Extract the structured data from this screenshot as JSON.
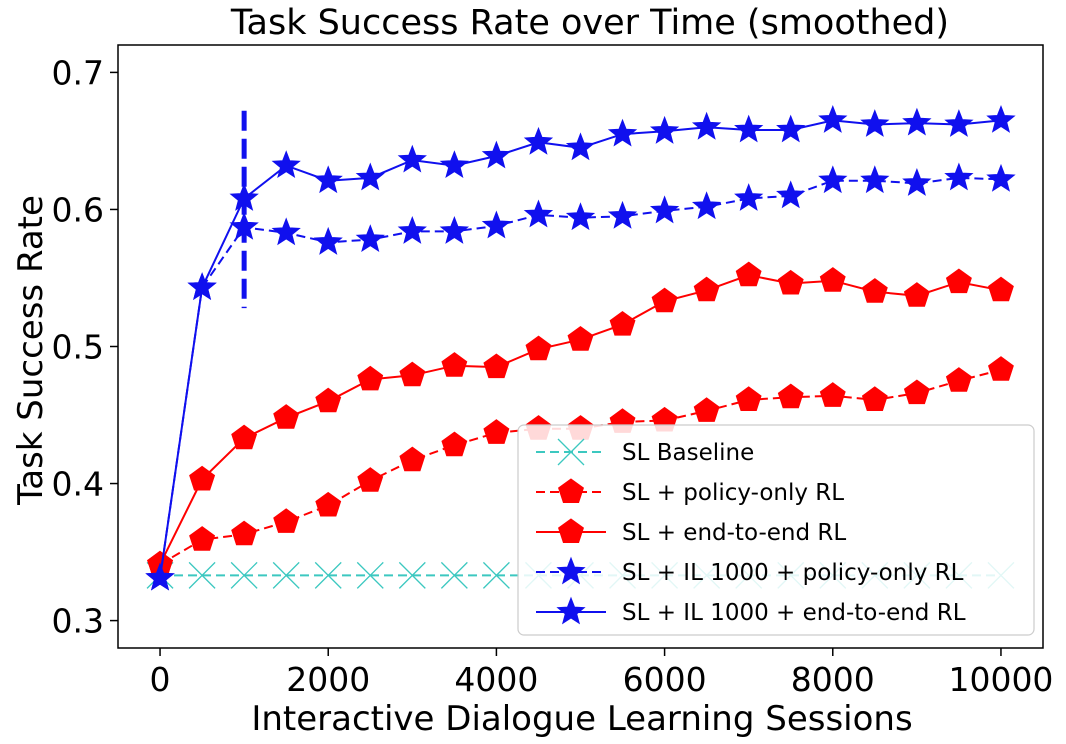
{
  "chart_data": {
    "type": "line",
    "title": "Task Success Rate over Time (smoothed)",
    "xlabel": "Interactive Dialogue Learning Sessions",
    "ylabel": "Task Success Rate",
    "xlim": [
      -500,
      10500
    ],
    "ylim": [
      0.28,
      0.72
    ],
    "xticks": [
      0,
      2000,
      4000,
      6000,
      8000,
      10000
    ],
    "yticks": [
      0.3,
      0.4,
      0.5,
      0.6,
      0.7
    ],
    "ytick_labels": [
      "0.3",
      "0.4",
      "0.5",
      "0.6",
      "0.7"
    ],
    "grid": false,
    "legend_position": "lower-right",
    "x": [
      0,
      500,
      1000,
      1500,
      2000,
      2500,
      3000,
      3500,
      4000,
      4500,
      5000,
      5500,
      6000,
      6500,
      7000,
      7500,
      8000,
      8500,
      9000,
      9500,
      10000
    ],
    "vline": {
      "x": 1000,
      "y_range": [
        0.528,
        0.672
      ],
      "color": "#1010ee"
    },
    "series": [
      {
        "name": "SL Baseline",
        "color": "#3cc8c0",
        "line": "dashed",
        "marker": "x",
        "values": [
          0.333,
          0.333,
          0.333,
          0.333,
          0.333,
          0.333,
          0.333,
          0.333,
          0.333,
          0.333,
          0.333,
          0.333,
          0.333,
          0.333,
          0.333,
          0.333,
          0.333,
          0.333,
          0.333,
          0.333,
          0.333
        ]
      },
      {
        "name": "SL + policy-only RL",
        "color": "#ff0000",
        "line": "dashed",
        "marker": "pentagon",
        "values": [
          0.341,
          0.359,
          0.363,
          0.372,
          0.384,
          0.402,
          0.417,
          0.428,
          0.437,
          0.44,
          0.44,
          0.445,
          0.446,
          0.453,
          0.461,
          0.463,
          0.464,
          0.461,
          0.466,
          0.475,
          0.483
        ]
      },
      {
        "name": "SL + end-to-end RL",
        "color": "#ff0000",
        "line": "solid",
        "marker": "pentagon",
        "values": [
          0.341,
          0.403,
          0.433,
          0.448,
          0.46,
          0.476,
          0.479,
          0.486,
          0.485,
          0.498,
          0.505,
          0.516,
          0.533,
          0.541,
          0.552,
          0.546,
          0.548,
          0.54,
          0.537,
          0.547,
          0.541
        ]
      },
      {
        "name": "SL + IL 1000 + policy-only RL",
        "color": "#1010ee",
        "line": "dashed",
        "marker": "star",
        "values": [
          0.331,
          0.543,
          0.587,
          0.583,
          0.576,
          0.578,
          0.584,
          0.584,
          0.588,
          0.596,
          0.594,
          0.595,
          0.599,
          0.602,
          0.608,
          0.61,
          0.621,
          0.621,
          0.619,
          0.623,
          0.622
        ]
      },
      {
        "name": "SL + IL 1000 + end-to-end RL",
        "color": "#1010ee",
        "line": "solid",
        "marker": "star",
        "values": [
          0.331,
          0.543,
          0.608,
          0.632,
          0.621,
          0.623,
          0.636,
          0.632,
          0.639,
          0.649,
          0.645,
          0.655,
          0.657,
          0.66,
          0.658,
          0.658,
          0.665,
          0.662,
          0.663,
          0.662,
          0.665
        ]
      }
    ]
  }
}
